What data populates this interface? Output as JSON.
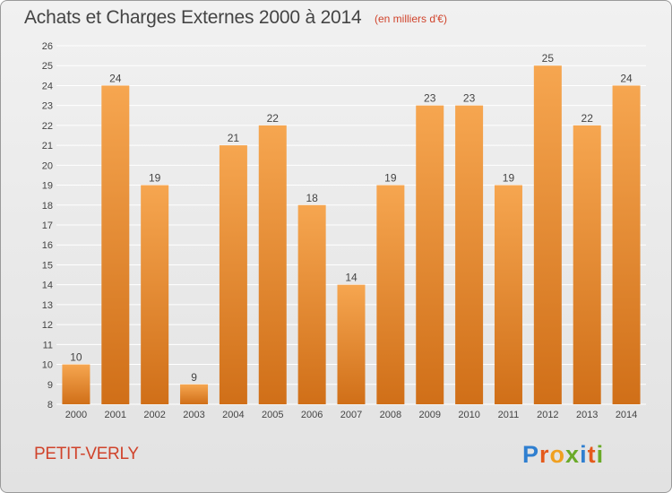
{
  "header": {
    "title": "Achats et Charges Externes 2000 à 2014",
    "unit_note": "(en milliers d'€)"
  },
  "footer": {
    "place_name": "PETIT-VERLY",
    "brand": "Proxiti"
  },
  "colors": {
    "bar_top": "#f6a650",
    "bar_bottom": "#d06f18",
    "grid": "#ffffff",
    "axis_text": "#444444",
    "accent": "#d0432b"
  },
  "chart_data": {
    "type": "bar",
    "title": "Achats et Charges Externes 2000 à 2014",
    "subtitle": "(en milliers d'€)",
    "xlabel": "",
    "ylabel": "",
    "categories": [
      "2000",
      "2001",
      "2002",
      "2003",
      "2004",
      "2005",
      "2006",
      "2007",
      "2008",
      "2009",
      "2010",
      "2011",
      "2012",
      "2013",
      "2014"
    ],
    "values": [
      10,
      24,
      19,
      9,
      21,
      22,
      18,
      14,
      19,
      23,
      23,
      19,
      25,
      22,
      24
    ],
    "ylim": [
      8,
      26
    ],
    "yticks": [
      8,
      9,
      10,
      11,
      12,
      13,
      14,
      15,
      16,
      17,
      18,
      19,
      20,
      21,
      22,
      23,
      24,
      25,
      26
    ],
    "grid": true,
    "data_labels": true,
    "legend": "none"
  }
}
